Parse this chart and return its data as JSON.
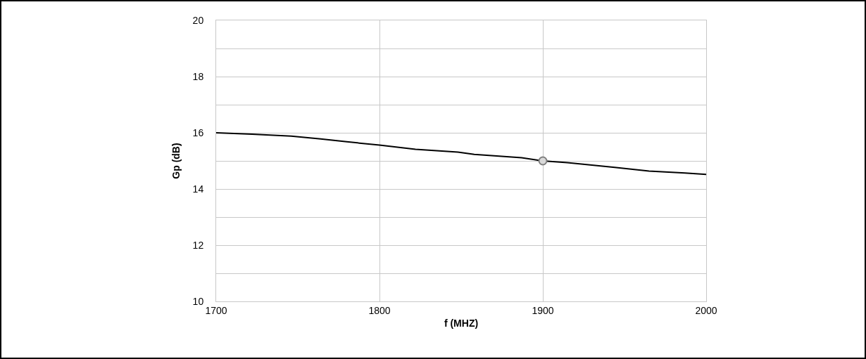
{
  "chart_data": {
    "type": "line",
    "xlabel": "f (MHZ)",
    "ylabel": "Gp (dB)",
    "xlim": [
      1700,
      2000
    ],
    "xticks": [
      1700,
      1800,
      1900,
      2000
    ],
    "ylim": [
      10,
      20
    ],
    "yticks": [
      10,
      {
        "value": 11,
        "label": null
      },
      12,
      {
        "value": 13,
        "label": null
      },
      14,
      {
        "value": 15,
        "label": null
      },
      16,
      {
        "value": 17,
        "label": null
      },
      18,
      {
        "value": 19,
        "label": null
      },
      20
    ],
    "grid": true,
    "marker": "none",
    "line_style": "solid",
    "series": [
      {
        "color": "#000000",
        "x": [
          1700,
          1722,
          1746,
          1764,
          1780,
          1800,
          1822,
          1848,
          1858,
          1887,
          1900,
          1915,
          1944,
          1965,
          1987,
          2000
        ],
        "values": [
          16.0,
          15.95,
          15.88,
          15.78,
          15.68,
          15.56,
          15.41,
          15.31,
          15.23,
          15.11,
          15.0,
          14.94,
          14.77,
          14.64,
          14.57,
          14.52
        ]
      },
      {
        "type": "scatter",
        "marker": "circle",
        "color": "#d9d9d9",
        "x": [
          1900
        ],
        "values": [
          15.0
        ]
      }
    ]
  }
}
